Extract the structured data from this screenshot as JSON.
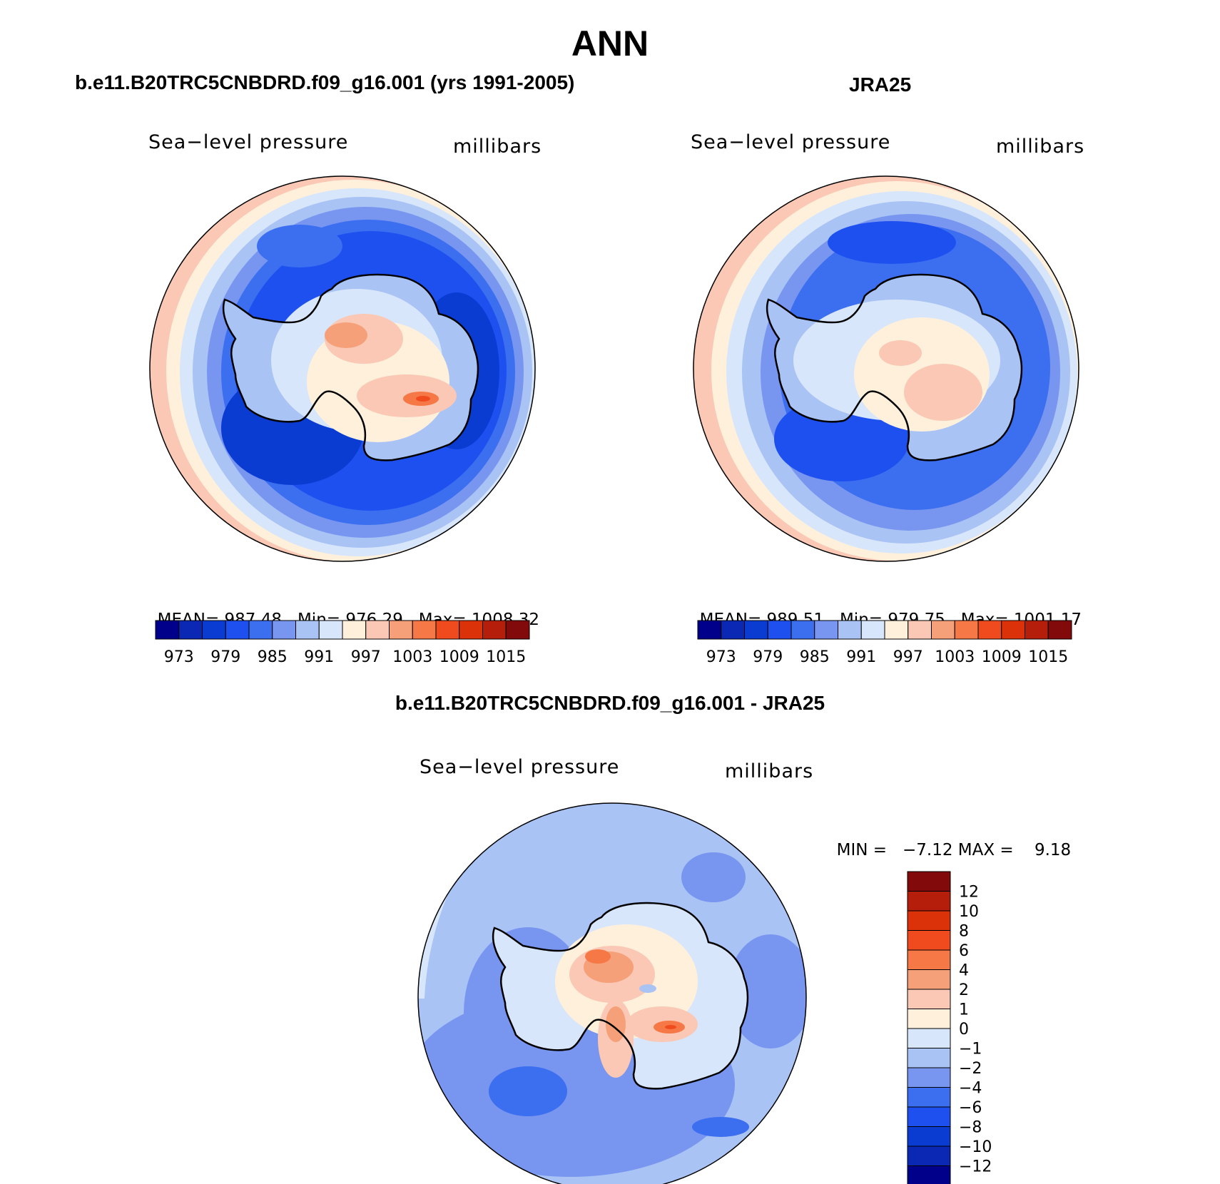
{
  "page": {
    "season": "ANN",
    "model_title": "b.e11.B20TRC5CNBDRD.f09_g16.001 (yrs 1991-2005)",
    "obs_title": "JRA25",
    "diff_title": "b.e11.B20TRC5CNBDRD.f09_g16.001 - JRA25"
  },
  "panels": {
    "model": {
      "variable": "Sea−level pressure",
      "units": "millibars",
      "stats": {
        "mean_label": "MEAN=",
        "mean": "987.48",
        "min_label": "Min=",
        "min": "976.29",
        "max_label": "Max=",
        "max": "1008.32"
      }
    },
    "obs": {
      "variable": "Sea−level pressure",
      "units": "millibars",
      "stats": {
        "mean_label": "MEAN=",
        "mean": "989.51",
        "min_label": "Min=",
        "min": "979.75",
        "max_label": "Max=",
        "max": "1001.17"
      }
    },
    "diff": {
      "variable": "Sea−level pressure",
      "units": "millibars",
      "stats": {
        "min_label": "MIN =",
        "min": "−7.12",
        "max_label": "MAX =",
        "max": "9.18"
      }
    }
  },
  "colorbars": {
    "absolute": {
      "labels": [
        "973",
        "979",
        "985",
        "991",
        "997",
        "1003",
        "1009",
        "1015"
      ],
      "colors": [
        "#00008b",
        "#0a28b4",
        "#0a3cd2",
        "#1e50f0",
        "#3c6ef0",
        "#7896f0",
        "#aac3f5",
        "#d7e6fa",
        "#fff0dc",
        "#fac8b4",
        "#f5a078",
        "#f57846",
        "#f04b1e",
        "#dc320a",
        "#b41e0a",
        "#820a0a"
      ]
    },
    "difference": {
      "labels": [
        "12",
        "10",
        "8",
        "6",
        "4",
        "2",
        "1",
        "0",
        "−1",
        "−2",
        "−4",
        "−6",
        "−8",
        "−10",
        "−12"
      ],
      "colors": [
        "#820a0a",
        "#b41e0a",
        "#dc320a",
        "#f04b1e",
        "#f57846",
        "#f5a078",
        "#fac8b4",
        "#fff0dc",
        "#d7e6fa",
        "#aac3f5",
        "#7896f0",
        "#3c6ef0",
        "#1e50f0",
        "#0a3cd2",
        "#0a28b4",
        "#00008b"
      ]
    }
  }
}
